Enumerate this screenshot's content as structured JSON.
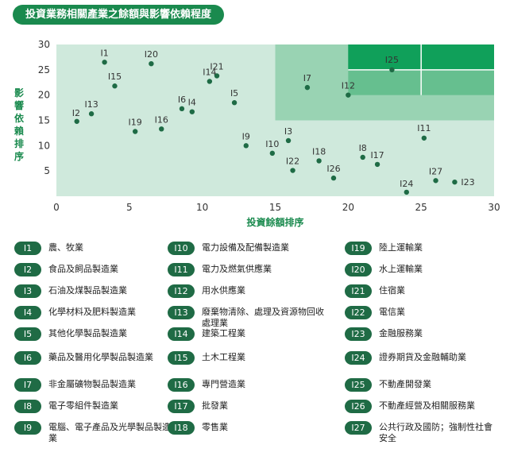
{
  "header": {
    "title": "投資業務相關產業之餘額與影響依賴程度"
  },
  "colors": {
    "accent": "#1a8a4e",
    "badge": "#1f6b45",
    "point": "#1e6b45",
    "zone_light": "#cfe9dc",
    "zone_mid": "#99d3b3",
    "zone_mid2": "#66bf8f",
    "zone_dark": "#10a05a"
  },
  "chart_data": {
    "type": "scatter",
    "xlabel": "投資餘額排序",
    "ylabel": "影響依賴排序",
    "xlim": [
      0,
      30
    ],
    "ylim": [
      0,
      30
    ],
    "xticks": [
      "0",
      "5",
      "10",
      "15",
      "20",
      "25",
      "30"
    ],
    "yticks": [
      "5",
      "10",
      "15",
      "20",
      "25",
      "30"
    ],
    "grid": false,
    "points": [
      {
        "label": "I1",
        "x": 3.3,
        "y": 26.5
      },
      {
        "label": "I2",
        "x": 1.4,
        "y": 14.8
      },
      {
        "label": "I3",
        "x": 15.9,
        "y": 11.0
      },
      {
        "label": "I4",
        "x": 9.3,
        "y": 16.7
      },
      {
        "label": "I5",
        "x": 12.2,
        "y": 18.5
      },
      {
        "label": "I6",
        "x": 8.6,
        "y": 17.3
      },
      {
        "label": "I7",
        "x": 17.2,
        "y": 21.5
      },
      {
        "label": "I8",
        "x": 21.0,
        "y": 7.7
      },
      {
        "label": "I9",
        "x": 13.0,
        "y": 10.0
      },
      {
        "label": "I10",
        "x": 14.8,
        "y": 8.5
      },
      {
        "label": "I11",
        "x": 25.2,
        "y": 11.5
      },
      {
        "label": "I12",
        "x": 20.0,
        "y": 20.0
      },
      {
        "label": "I13",
        "x": 2.4,
        "y": 16.3
      },
      {
        "label": "I14",
        "x": 10.5,
        "y": 22.7
      },
      {
        "label": "I15",
        "x": 4.0,
        "y": 21.8
      },
      {
        "label": "I16",
        "x": 7.2,
        "y": 13.3
      },
      {
        "label": "I17",
        "x": 22.0,
        "y": 6.3
      },
      {
        "label": "I18",
        "x": 18.0,
        "y": 7.0
      },
      {
        "label": "I19",
        "x": 5.4,
        "y": 12.8
      },
      {
        "label": "I20",
        "x": 6.5,
        "y": 26.2
      },
      {
        "label": "I21",
        "x": 11.0,
        "y": 23.8
      },
      {
        "label": "I22",
        "x": 16.2,
        "y": 5.1
      },
      {
        "label": "I23",
        "x": 27.3,
        "y": 2.8
      },
      {
        "label": "I24",
        "x": 24.0,
        "y": 0.8
      },
      {
        "label": "I25",
        "x": 23.0,
        "y": 25.0
      },
      {
        "label": "I26",
        "x": 19.0,
        "y": 3.6
      },
      {
        "label": "I27",
        "x": 26.0,
        "y": 3.1
      }
    ]
  },
  "legend": {
    "columns": [
      [
        {
          "code": "I1",
          "label": "農、牧業"
        },
        {
          "code": "I2",
          "label": "食品及飼品製造業"
        },
        {
          "code": "I3",
          "label": "石油及煤製品製造業"
        },
        {
          "code": "I4",
          "label": "化學材料及肥料製造業"
        },
        {
          "code": "I5",
          "label": "其他化學製品製造業"
        },
        {
          "code": "I6",
          "label": "藥品及醫用化學製品製造業"
        },
        {
          "code": "I7",
          "label": "非金屬礦物製品製造業"
        },
        {
          "code": "I8",
          "label": "電子零組件製造業"
        },
        {
          "code": "I9",
          "label": "電腦、電子產品及光學製品製造業"
        }
      ],
      [
        {
          "code": "I10",
          "label": "電力設備及配備製造業"
        },
        {
          "code": "I11",
          "label": "電力及燃氣供應業"
        },
        {
          "code": "I12",
          "label": "用水供應業"
        },
        {
          "code": "I13",
          "label": "廢棄物清除、處理及資源物回收處理業"
        },
        {
          "code": "I14",
          "label": "建築工程業"
        },
        {
          "code": "I15",
          "label": "土木工程業"
        },
        {
          "code": "I16",
          "label": "專門營造業"
        },
        {
          "code": "I17",
          "label": "批發業"
        },
        {
          "code": "I18",
          "label": "零售業"
        }
      ],
      [
        {
          "code": "I19",
          "label": "陸上運輸業"
        },
        {
          "code": "I20",
          "label": "水上運輸業"
        },
        {
          "code": "I21",
          "label": "住宿業"
        },
        {
          "code": "I22",
          "label": "電信業"
        },
        {
          "code": "I23",
          "label": "金融服務業"
        },
        {
          "code": "I24",
          "label": "證券期貨及金融輔助業"
        },
        {
          "code": "I25",
          "label": "不動產開發業"
        },
        {
          "code": "I26",
          "label": "不動產經營及相關服務業"
        },
        {
          "code": "I27",
          "label": "公共行政及國防；強制性社會安全"
        }
      ]
    ]
  }
}
